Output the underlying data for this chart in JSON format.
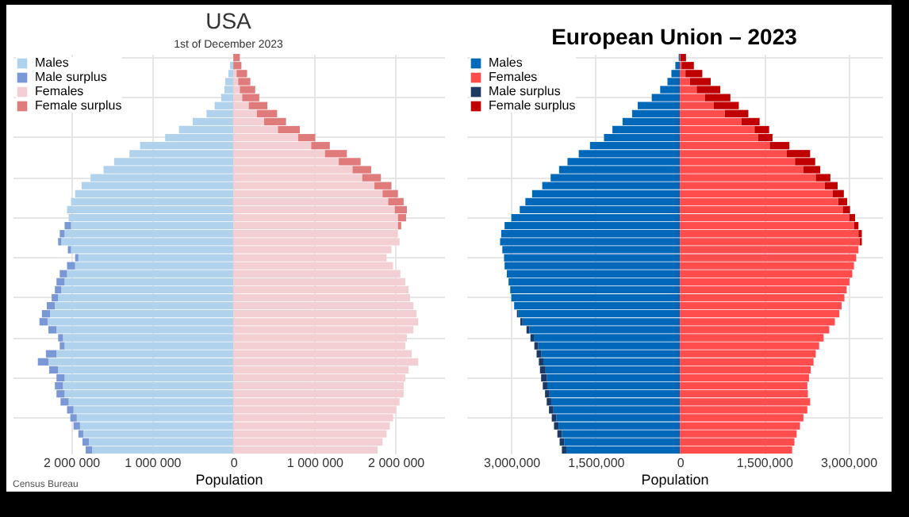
{
  "chart_data": [
    {
      "type": "bar",
      "orientation": "horizontal",
      "stacked": true,
      "title": "USA",
      "subtitle": "1st of December 2023",
      "xlabel": "Population",
      "categories": [
        null,
        null,
        null,
        null,
        null,
        null,
        null,
        null,
        null,
        null,
        null,
        null,
        null,
        null,
        null,
        null,
        null,
        null,
        null,
        null,
        null,
        null,
        null,
        null,
        null,
        null,
        null,
        null,
        null,
        null,
        null,
        null,
        null,
        null,
        null,
        null,
        null,
        null,
        null,
        null,
        null,
        null,
        null,
        null,
        null,
        null,
        null,
        null,
        null,
        null
      ],
      "series": [
        {
          "name": "Males",
          "color": "#b0d2ec",
          "values": [
            null,
            -40000,
            -60000,
            -100000,
            -110000,
            -150000,
            -230000,
            -330000,
            -500000,
            -670000,
            -840000,
            -1150000,
            -1280000,
            -1470000,
            -1600000,
            -1760000,
            -1870000,
            -1950000,
            -2000000,
            -2050000,
            -2030000,
            -2000000,
            -2080000,
            -2120000,
            -2000000,
            -1910000,
            -1950000,
            -2050000,
            -2080000,
            -2120000,
            -2160000,
            -2200000,
            -2260000,
            -2290000,
            -2180000,
            -2100000,
            -2080000,
            -2180000,
            -2280000,
            -2160000,
            -2080000,
            -2100000,
            -2080000,
            -2030000,
            -1970000,
            -1930000,
            -1890000,
            -1850000,
            -1780000,
            -1740000
          ]
        },
        {
          "name": "Male surplus",
          "color": "#7b98d6",
          "values": [
            null,
            null,
            null,
            null,
            null,
            null,
            null,
            null,
            null,
            null,
            null,
            null,
            null,
            null,
            null,
            null,
            null,
            null,
            null,
            null,
            null,
            -80000,
            -60000,
            -40000,
            -40000,
            -40000,
            -100000,
            -90000,
            -100000,
            -80000,
            -80000,
            -100000,
            -100000,
            -100000,
            -100000,
            -60000,
            -60000,
            -130000,
            -130000,
            -110000,
            -100000,
            -100000,
            -100000,
            -100000,
            -80000,
            -80000,
            -80000,
            -60000,
            -80000,
            -80000
          ]
        },
        {
          "name": "Females",
          "color": "#f3cfd3",
          "values": [
            null,
            null,
            40000,
            60000,
            80000,
            110000,
            190000,
            290000,
            380000,
            550000,
            800000,
            960000,
            1130000,
            1300000,
            1470000,
            1590000,
            1740000,
            1840000,
            1910000,
            1990000,
            2030000,
            2030000,
            2030000,
            2050000,
            1950000,
            1890000,
            1970000,
            2060000,
            2120000,
            2160000,
            2180000,
            2220000,
            2260000,
            2280000,
            2220000,
            2140000,
            2120000,
            2200000,
            2280000,
            2160000,
            2120000,
            2100000,
            2100000,
            2050000,
            2010000,
            1970000,
            1930000,
            1890000,
            1840000,
            1780000
          ]
        },
        {
          "name": "Female surplus",
          "color": "#e07b7b",
          "values": [
            80000,
            100000,
            130000,
            150000,
            190000,
            210000,
            230000,
            250000,
            270000,
            270000,
            210000,
            230000,
            270000,
            270000,
            230000,
            230000,
            210000,
            190000,
            190000,
            150000,
            100000,
            40000,
            null,
            null,
            null,
            null,
            null,
            null,
            null,
            null,
            null,
            null,
            null,
            null,
            null,
            null,
            null,
            null,
            null,
            null,
            null,
            null,
            null,
            null,
            null,
            null,
            null,
            null,
            null,
            null
          ]
        }
      ],
      "xlim": [
        -2720000,
        2600000
      ],
      "xticks": [
        {
          "value": -2000000,
          "label": "2 000 000"
        },
        {
          "value": -1000000,
          "label": "1 000 000"
        },
        0,
        {
          "value": 1000000,
          "label": "1 000 000"
        },
        {
          "value": 2000000,
          "label": "2 000 000"
        }
      ],
      "grid": true,
      "legend": "top left",
      "tick_labels": "x",
      "annotations": [
        "Census Bureau"
      ]
    },
    {
      "type": "bar",
      "orientation": "horizontal",
      "stacked": true,
      "title": "European Union – 2023",
      "xlabel": "Population",
      "categories": [
        null,
        null,
        null,
        null,
        null,
        null,
        null,
        null,
        null,
        null,
        null,
        null,
        null,
        null,
        null,
        null,
        null,
        null,
        null,
        null,
        null,
        null,
        null,
        null,
        null,
        null,
        null,
        null,
        null,
        null,
        null,
        null,
        null,
        null,
        null,
        null,
        null,
        null,
        null,
        null,
        null,
        null,
        null,
        null,
        null,
        null,
        null,
        null,
        null,
        null
      ],
      "series": [
        {
          "name": "Males",
          "color": "#0068b8",
          "values": [
            -20000,
            -80000,
            -150000,
            -220000,
            -350000,
            -500000,
            -750000,
            -850000,
            -1020000,
            -1200000,
            -1350000,
            -1600000,
            -1800000,
            -2000000,
            -2150000,
            -2300000,
            -2450000,
            -2630000,
            -2750000,
            -2850000,
            -3000000,
            -3120000,
            -3180000,
            -3200000,
            -3160000,
            -3130000,
            -3120000,
            -3080000,
            -3050000,
            -3020000,
            -3000000,
            -2950000,
            -2880000,
            -2800000,
            -2680000,
            -2600000,
            -2520000,
            -2470000,
            -2430000,
            -2390000,
            -2370000,
            -2360000,
            -2320000,
            -2290000,
            -2250000,
            -2200000,
            -2160000,
            -2100000,
            -2060000,
            -2020000
          ]
        },
        {
          "name": "Females",
          "color": "#ff4d4d",
          "values": [
            10000,
            30000,
            100000,
            180000,
            300000,
            450000,
            600000,
            800000,
            1100000,
            1330000,
            1390000,
            1600000,
            1900000,
            2050000,
            2200000,
            2420000,
            2580000,
            2720000,
            2820000,
            2900000,
            3020000,
            3100000,
            3180000,
            3200000,
            3180000,
            3140000,
            3100000,
            3070000,
            3020000,
            2970000,
            2930000,
            2880000,
            2840000,
            2760000,
            2660000,
            2560000,
            2480000,
            2420000,
            2380000,
            2330000,
            2300000,
            2270000,
            2280000,
            2320000,
            2270000,
            2200000,
            2140000,
            2080000,
            2040000,
            2000000
          ]
        },
        {
          "name": "Male surplus",
          "color": "#1c3966",
          "values": [
            null,
            null,
            null,
            null,
            null,
            null,
            null,
            null,
            null,
            null,
            null,
            null,
            null,
            null,
            null,
            null,
            null,
            null,
            null,
            null,
            null,
            null,
            null,
            null,
            null,
            null,
            null,
            null,
            null,
            null,
            null,
            null,
            -20000,
            -40000,
            -50000,
            -60000,
            -70000,
            -80000,
            -80000,
            -100000,
            -100000,
            -80000,
            -80000,
            -80000,
            -80000,
            -80000,
            -80000,
            -80000,
            -80000,
            -80000
          ]
        },
        {
          "name": "Female surplus",
          "color": "#c00000",
          "values": [
            100000,
            220000,
            300000,
            370000,
            420000,
            450000,
            450000,
            420000,
            320000,
            260000,
            260000,
            350000,
            420000,
            360000,
            300000,
            260000,
            230000,
            200000,
            160000,
            130000,
            100000,
            80000,
            60000,
            40000,
            null,
            null,
            null,
            null,
            null,
            null,
            null,
            null,
            null,
            null,
            null,
            null,
            null,
            null,
            null,
            null,
            null,
            null,
            null,
            null,
            null,
            null,
            null,
            null,
            null,
            null
          ]
        }
      ],
      "xlim": [
        -3800000,
        3600000
      ],
      "xticks": [
        {
          "value": -3000000,
          "label": "3,000,000"
        },
        {
          "value": -1500000,
          "label": "1,500,000"
        },
        0,
        {
          "value": 1500000,
          "label": "1,500,000"
        },
        {
          "value": 3000000,
          "label": "3,000,000"
        }
      ],
      "grid": true,
      "legend": "top left",
      "tick_labels": "x"
    }
  ]
}
